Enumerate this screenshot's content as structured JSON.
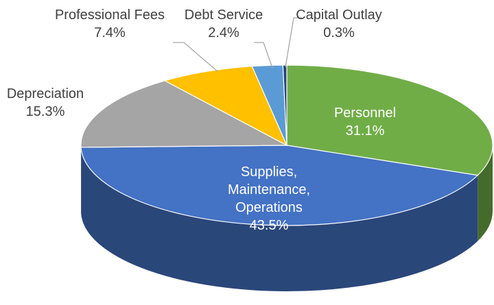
{
  "chart_data": {
    "type": "pie",
    "categories": [
      "Personnel",
      "Supplies, Maintenance, Operations",
      "Depreciation",
      "Professional Fees",
      "Debt Service",
      "Capital Outlay"
    ],
    "values": [
      31.1,
      43.5,
      15.3,
      7.4,
      2.4,
      0.3
    ],
    "value_labels": [
      "31.1%",
      "43.5%",
      "15.3%",
      "7.4%",
      "2.4%",
      "0.3%"
    ],
    "colors": [
      "#70ad47",
      "#4472c4",
      "#a5a5a5",
      "#ffc000",
      "#5b9bd5",
      "#264478"
    ]
  }
}
